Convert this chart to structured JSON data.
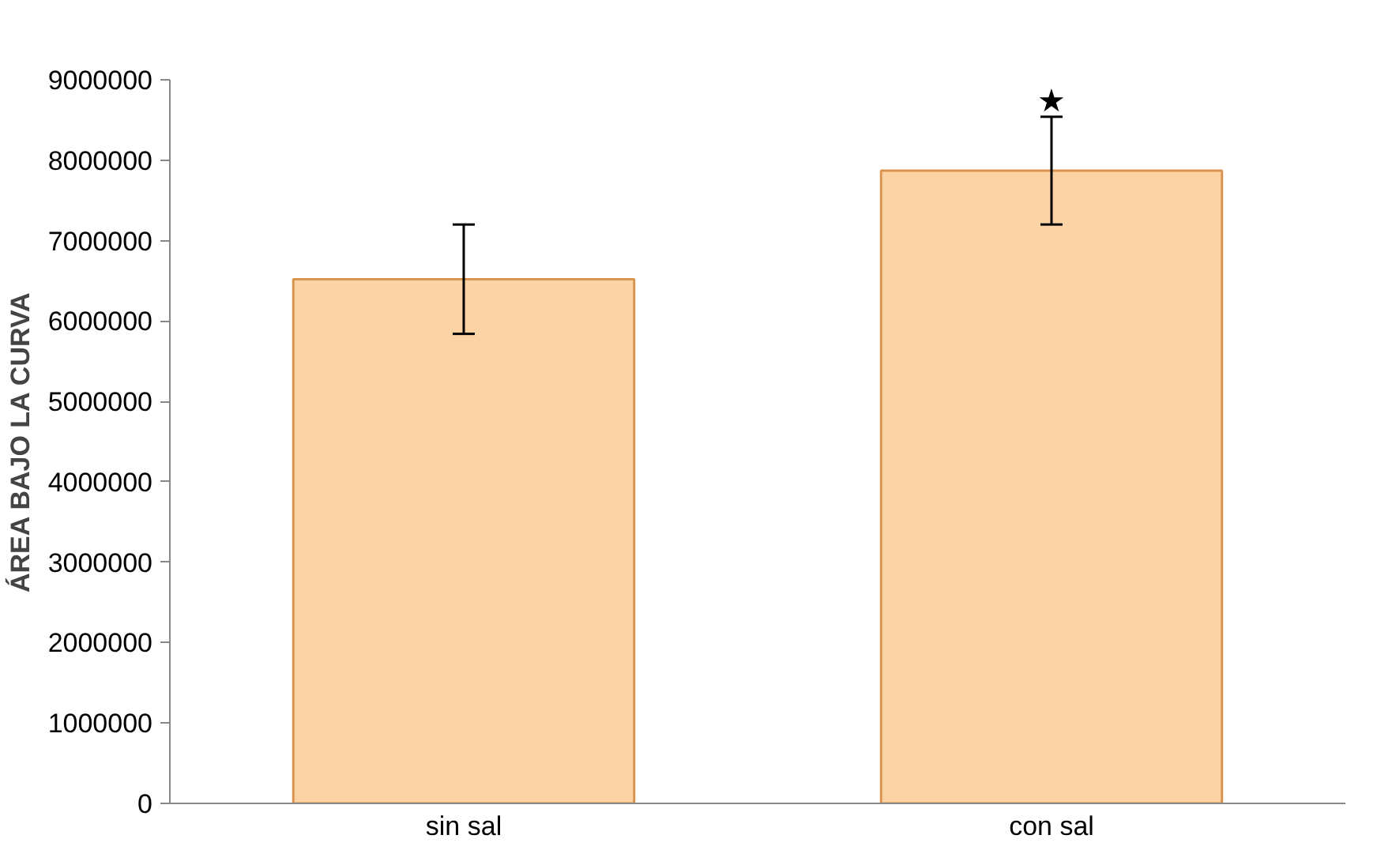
{
  "chart_data": {
    "type": "bar",
    "ylabel": "ÁREA BAJO LA CURVA",
    "categories": [
      "sin sal",
      "con sal"
    ],
    "values": [
      6520000,
      7870000
    ],
    "errors": [
      680000,
      670000
    ],
    "color": "#fbd3a5",
    "ylim": [
      0,
      9000000
    ],
    "yticks": [
      0,
      1000000,
      2000000,
      3000000,
      4000000,
      5000000,
      6000000,
      7000000,
      8000000,
      9000000
    ],
    "grid": false,
    "annotations": [
      "★"
    ]
  }
}
